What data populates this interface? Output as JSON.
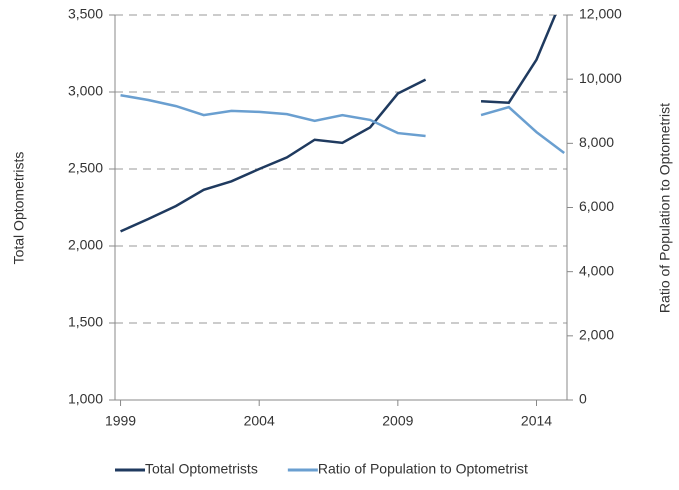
{
  "chart_data": {
    "type": "line",
    "x": [
      1999,
      2000,
      2001,
      2002,
      2003,
      2004,
      2005,
      2006,
      2007,
      2008,
      2009,
      2010,
      2011,
      2012,
      2013,
      2014,
      2015
    ],
    "series": [
      {
        "name": "Total Optometrists",
        "color": "#1f3a5f",
        "values": [
          2095,
          2175,
          2260,
          2365,
          2420,
          2500,
          2575,
          2690,
          2670,
          2770,
          2990,
          3080,
          null,
          2940,
          2930,
          3210,
          3640
        ]
      },
      {
        "name": "Ratio of Population to Optometrist",
        "color": "#6a9fd0",
        "axis": "y2",
        "values": [
          9500,
          9350,
          9160,
          8880,
          9010,
          8980,
          8910,
          8700,
          8880,
          8730,
          8320,
          8230,
          null,
          8880,
          9130,
          8350,
          7700
        ]
      }
    ],
    "y_label": "Total Optometrists",
    "y2_label": "Ratio of Population to Optometrist",
    "xlim": [
      1998.8,
      2015.1
    ],
    "xticks": [
      1999,
      2004,
      2009,
      2014
    ],
    "ylim": [
      1000,
      3500
    ],
    "yticks": [
      {
        "value": 1000,
        "label": "1,000"
      },
      {
        "value": 1500,
        "label": "1,500"
      },
      {
        "value": 2000,
        "label": "2,000"
      },
      {
        "value": 2500,
        "label": "2,500"
      },
      {
        "value": 3000,
        "label": "3,000"
      },
      {
        "value": 3500,
        "label": "3,500"
      }
    ],
    "y2lim": [
      0,
      12000
    ],
    "y2ticks": [
      0,
      {
        "value": 2000,
        "label": "2,000"
      },
      {
        "value": 4000,
        "label": "4,000"
      },
      {
        "value": 6000,
        "label": "6,000"
      },
      {
        "value": 8000,
        "label": "8,000"
      },
      {
        "value": 10000,
        "label": "10,000"
      },
      {
        "value": 12000,
        "label": "12,000"
      }
    ],
    "grid": true,
    "legend": "bottom"
  }
}
